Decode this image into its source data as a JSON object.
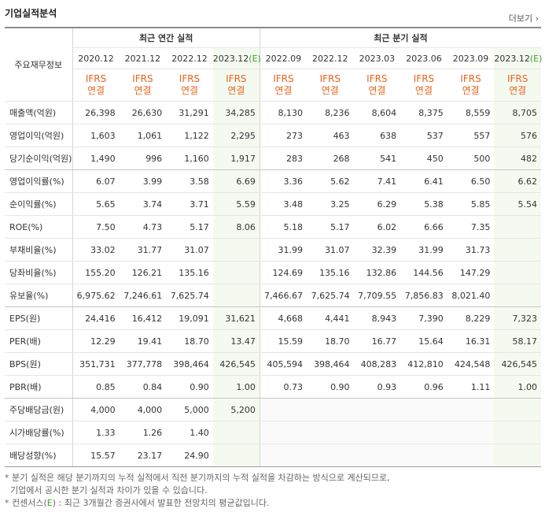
{
  "header": {
    "title": "기업실적분석",
    "more": "더보기"
  },
  "table": {
    "corner": "주요재무정보",
    "groups": [
      {
        "label": "최근 연간 실적",
        "span": 4
      },
      {
        "label": "최근 분기 실적",
        "span": 6
      }
    ],
    "columns": [
      {
        "date": "2020.12",
        "standard": "IFRS",
        "basis": "연결"
      },
      {
        "date": "2021.12",
        "standard": "IFRS",
        "basis": "연결"
      },
      {
        "date": "2022.12",
        "standard": "IFRS",
        "basis": "연결"
      },
      {
        "date": "2023.12",
        "mark": "(E)",
        "standard": "IFRS",
        "basis": "연결"
      },
      {
        "date": "2022.09",
        "standard": "IFRS",
        "basis": "연결"
      },
      {
        "date": "2022.12",
        "standard": "IFRS",
        "basis": "연결"
      },
      {
        "date": "2023.03",
        "standard": "IFRS",
        "basis": "연결"
      },
      {
        "date": "2023.06",
        "standard": "IFRS",
        "basis": "연결"
      },
      {
        "date": "2023.09",
        "standard": "IFRS",
        "basis": "연결"
      },
      {
        "date": "2023.12",
        "mark": "(E)",
        "standard": "IFRS",
        "basis": "연결"
      }
    ],
    "rows": [
      {
        "label": "매출액(억원)",
        "cells": [
          "26,398",
          "26,630",
          "31,291",
          "34,285",
          "8,130",
          "8,236",
          "8,604",
          "8,375",
          "8,559",
          "8,705"
        ]
      },
      {
        "label": "영업이익(억원)",
        "cells": [
          "1,603",
          "1,061",
          "1,122",
          "2,295",
          "273",
          "463",
          "638",
          "537",
          "557",
          "576"
        ]
      },
      {
        "label": "당기순이익(억원)",
        "cells": [
          "1,490",
          "996",
          "1,160",
          "1,917",
          "283",
          "268",
          "541",
          "450",
          "500",
          "482"
        ]
      },
      {
        "label": "영업이익률(%)",
        "cells": [
          "6.07",
          "3.99",
          "3.58",
          "6.69",
          "3.36",
          "5.62",
          "7.41",
          "6.41",
          "6.50",
          "6.62"
        ]
      },
      {
        "label": "순이익률(%)",
        "cells": [
          "5.65",
          "3.74",
          "3.71",
          "5.59",
          "3.48",
          "3.25",
          "6.29",
          "5.38",
          "5.85",
          "5.54"
        ]
      },
      {
        "label": "ROE(%)",
        "cells": [
          "7.50",
          "4.73",
          "5.17",
          "8.06",
          "5.18",
          "5.17",
          "6.02",
          "6.66",
          "7.35",
          null
        ]
      },
      {
        "label": "부채비율(%)",
        "cells": [
          "33.02",
          "31.77",
          "31.07",
          null,
          "31.99",
          "31.07",
          "32.39",
          "31.99",
          "31.73",
          null
        ]
      },
      {
        "label": "당좌비율(%)",
        "cells": [
          "155.20",
          "126.21",
          "135.16",
          null,
          "124.69",
          "135.16",
          "132.86",
          "144.56",
          "147.29",
          null
        ]
      },
      {
        "label": "유보율(%)",
        "cells": [
          "6,975.62",
          "7,246.61",
          "7,625.74",
          null,
          "7,466.67",
          "7,625.74",
          "7,709.55",
          "7,856.83",
          "8,021.40",
          null
        ]
      },
      {
        "label": "EPS(원)",
        "cells": [
          "24,416",
          "16,412",
          "19,091",
          "31,621",
          "4,668",
          "4,441",
          "8,943",
          "7,390",
          "8,229",
          "7,323"
        ]
      },
      {
        "label": "PER(배)",
        "cells": [
          "12.29",
          "19.41",
          "18.70",
          "13.47",
          "15.59",
          "18.70",
          "16.77",
          "15.64",
          "16.31",
          "58.17"
        ]
      },
      {
        "label": "BPS(원)",
        "cells": [
          "351,731",
          "377,778",
          "398,464",
          "426,545",
          "405,594",
          "398,464",
          "408,283",
          "412,810",
          "424,548",
          "426,545"
        ]
      },
      {
        "label": "PBR(배)",
        "cells": [
          "0.85",
          "0.84",
          "0.90",
          "1.00",
          "0.73",
          "0.90",
          "0.93",
          "0.96",
          "1.11",
          "1.00"
        ]
      },
      {
        "label": "주당배당금(원)",
        "cells": [
          "4,000",
          "4,000",
          "5,000",
          "5,200",
          null,
          null,
          null,
          null,
          null,
          null
        ]
      },
      {
        "label": "시가배당률(%)",
        "cells": [
          "1.33",
          "1.26",
          "1.40",
          null,
          null,
          null,
          null,
          null,
          null,
          null
        ]
      },
      {
        "label": "배당성향(%)",
        "cells": [
          "15.57",
          "23.17",
          "24.90",
          null,
          null,
          null,
          null,
          null,
          null,
          null
        ]
      }
    ]
  },
  "notes": [
    [
      "* 분기 실적은 해당 분기까지의 누적 실적에서 직전 분기까지의 누적 실적을 차감하는 방식으로 계산되므로,"
    ],
    [
      "  기업에서 공시한 분기 실적과 차이가 있을 수 있습니다."
    ],
    [
      "* 컨센서스(",
      "E",
      ") : 최근 3개월간 증권사에서 발표한 전망치의 평균값입니다."
    ]
  ]
}
